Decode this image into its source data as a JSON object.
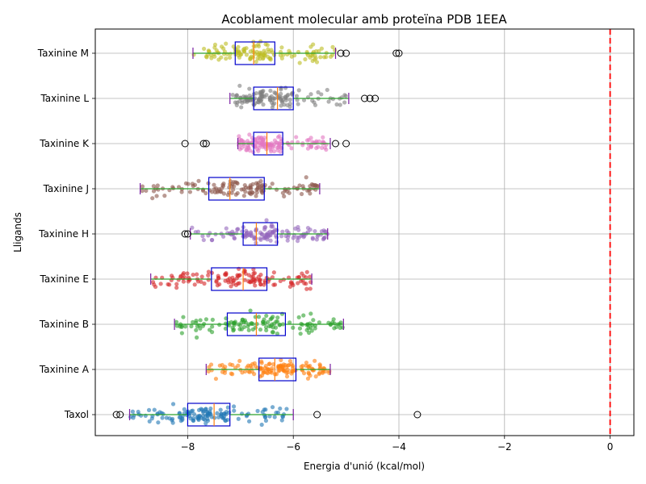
{
  "chart_data": {
    "type": "boxplot",
    "title": "Acoblament molecular amb proteïna PDB 1EEA",
    "xlabel": "Energia d'unió (kcal/mol)",
    "ylabel": "Lligands",
    "xlim": [
      -9.75,
      0.45
    ],
    "x_ticks": [
      -8,
      -6,
      -4,
      -2,
      0
    ],
    "x_tick_labels": [
      "−8",
      "−6",
      "−4",
      "−2",
      "0"
    ],
    "grid": true,
    "reference_line": {
      "x": 0,
      "color": "#ff0000",
      "style": "dashed"
    },
    "box_color": "#0000cc",
    "whisker_color": "#2ca02c",
    "median_color": "#ff7f0e",
    "ligands": [
      {
        "name": "Taxol",
        "color": "#1f77b4",
        "q1": -8.0,
        "median": -7.5,
        "q3": -7.2,
        "whisker_low": -9.1,
        "whisker_high": -6.0,
        "outliers": [
          -9.35,
          -9.28,
          -5.55,
          -3.65
        ]
      },
      {
        "name": "Taxinine A",
        "color": "#ff7f0e",
        "q1": -6.65,
        "median": -6.35,
        "q3": -5.95,
        "whisker_low": -7.65,
        "whisker_high": -5.3,
        "outliers": []
      },
      {
        "name": "Taxinine B",
        "color": "#2ca02c",
        "q1": -7.25,
        "median": -6.7,
        "q3": -6.15,
        "whisker_low": -8.25,
        "whisker_high": -5.05,
        "outliers": []
      },
      {
        "name": "Taxinine E",
        "color": "#d62728",
        "q1": -7.55,
        "median": -6.95,
        "q3": -6.5,
        "whisker_low": -8.7,
        "whisker_high": -5.65,
        "outliers": []
      },
      {
        "name": "Taxinine H",
        "color": "#9467bd",
        "q1": -6.95,
        "median": -6.7,
        "q3": -6.3,
        "whisker_low": -7.95,
        "whisker_high": -5.35,
        "outliers": [
          -8.05,
          -8.0
        ]
      },
      {
        "name": "Taxinine J",
        "color": "#8c564b",
        "q1": -7.6,
        "median": -7.2,
        "q3": -6.55,
        "whisker_low": -8.9,
        "whisker_high": -5.5,
        "outliers": []
      },
      {
        "name": "Taxinine K",
        "color": "#e377c2",
        "q1": -6.75,
        "median": -6.5,
        "q3": -6.2,
        "whisker_low": -7.05,
        "whisker_high": -5.3,
        "outliers": [
          -8.05,
          -7.7,
          -7.65,
          -5.2,
          -5.0
        ]
      },
      {
        "name": "Taxinine L",
        "color": "#7f7f7f",
        "q1": -6.75,
        "median": -6.3,
        "q3": -6.0,
        "whisker_low": -7.2,
        "whisker_high": -4.95,
        "outliers": [
          -4.65,
          -4.55,
          -4.45
        ]
      },
      {
        "name": "Taxinine M",
        "color": "#bcbd22",
        "q1": -7.1,
        "median": -6.75,
        "q3": -6.35,
        "whisker_low": -7.9,
        "whisker_high": -5.2,
        "outliers": [
          -5.1,
          -5.0,
          -4.05,
          -4.0
        ]
      }
    ]
  }
}
